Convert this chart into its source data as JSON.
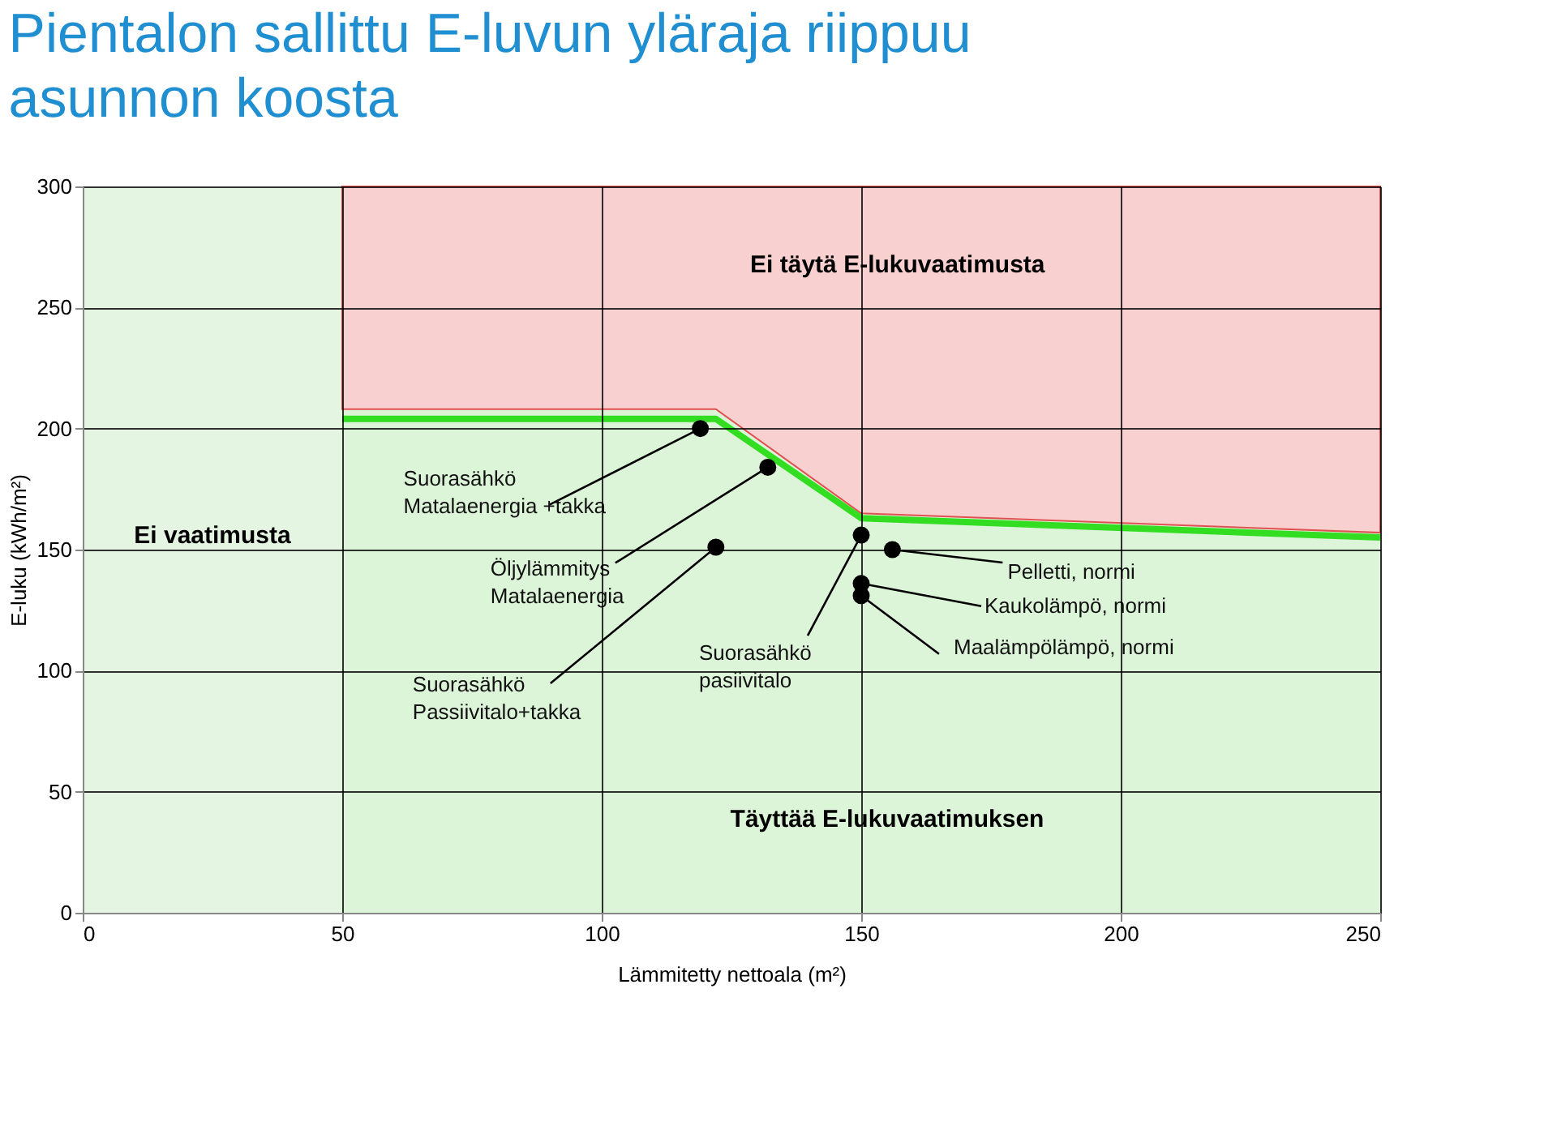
{
  "chart_data": {
    "type": "line",
    "title": "Pientalon sallittu E-luvun yläraja riippuu asunnon koosta",
    "xlabel": "Lämmitetty nettoala (m²)",
    "ylabel": "E-luku (kWh/m²)",
    "xlim": [
      0,
      250
    ],
    "ylim": [
      0,
      300
    ],
    "xticks": [
      0,
      50,
      100,
      150,
      200,
      250
    ],
    "yticks": [
      0,
      50,
      100,
      150,
      200,
      250,
      300
    ],
    "grid": true,
    "stacked": true,
    "bands": [
      {
        "axis": "x",
        "from": 0,
        "to": 50,
        "label": "Ei vaatimusta",
        "color": "#e4f6e2"
      }
    ],
    "series": [
      {
        "type": "area",
        "color": "#dcf5d8",
        "x": [
          50,
          122,
          150,
          250
        ],
        "values": [
          208,
          208,
          165,
          157
        ]
      },
      {
        "type": "area",
        "color": "#f8d0d0",
        "x": [
          50,
          122,
          150,
          250
        ],
        "values": [
          92,
          92,
          135,
          143
        ]
      },
      {
        "color": "#33dd22",
        "x": [
          50,
          122,
          150,
          250
        ],
        "values": [
          204,
          204,
          163,
          155
        ],
        "line_style": "solid",
        "marker": "none"
      },
      {
        "type": "scatter",
        "color": "#000000",
        "marker": "circle",
        "x": [
          119,
          132,
          122,
          150,
          156,
          150,
          150
        ],
        "values": [
          200,
          184,
          151,
          156,
          150,
          136,
          131
        ]
      }
    ],
    "annotations": [
      "Ei täytä E-lukuvaatimusta",
      "Täyttää E-lukuvaatimuksen",
      {
        "text": "Suorasähkö\nMatalaenergia +takka",
        "x": 119,
        "y": 200
      },
      {
        "text": "Öljylämmitys\nMatalaenergia",
        "x": 132,
        "y": 184
      },
      {
        "text": "Suorasähkö\nPassiivitalo+takka",
        "x": 122,
        "y": 151
      },
      {
        "text": "Suorasähkö\npasiivitalo",
        "x": 150,
        "y": 156
      },
      {
        "text": "Pelletti, normi",
        "x": 156,
        "y": 150
      },
      {
        "text": "Kaukolämpö, normi",
        "x": 150,
        "y": 136
      },
      {
        "text": "Maalämpölämpö, normi",
        "x": 150,
        "y": 131
      }
    ]
  }
}
